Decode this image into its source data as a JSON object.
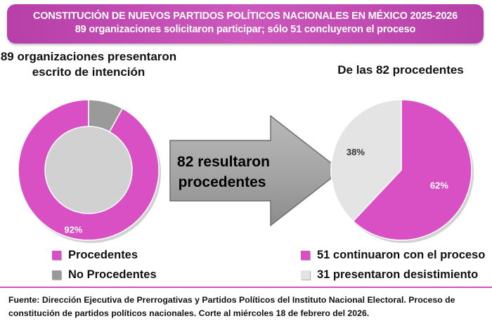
{
  "header": {
    "title": "CONSTITUCIÓN DE NUEVOS PARTIDOS POLÍTICOS NACIONALES EN MÉXICO 2025-2026",
    "subtitle": "89 organizaciones solicitaron participar; sólo 51 concluyeron el proceso"
  },
  "arrow_text": {
    "line1": "82 resultaron",
    "line2": "procedentes"
  },
  "source_note": "Fuente: Dirección Ejecutiva de Prerrogativas y Partidos Políticos del Instituto Nacional Electoral. Proceso de constitución de partidos políticos nacionales. Corte al miércoles 18 de febrero del 2026.",
  "colors": {
    "magenta": "#d94fc4",
    "gray": "#9a9a9a",
    "light_gray": "#e4e4e4",
    "banner": "#c24fb3"
  },
  "chart_data": [
    {
      "type": "pie",
      "subtype": "donut",
      "title_line1": "89 organizaciones presentaron",
      "title_line2": "escrito de intención",
      "slices": [
        {
          "label": "Procedentes",
          "value": 92,
          "value_label": "92%",
          "color": "#d94fc4"
        },
        {
          "label": "No Procedentes",
          "value": 8,
          "value_label": "",
          "color": "#9a9a9a"
        }
      ]
    },
    {
      "type": "pie",
      "title": "De las 82 procedentes",
      "slices": [
        {
          "label": "51 continuaron con el proceso",
          "value": 62,
          "value_label": "62%",
          "color": "#d94fc4"
        },
        {
          "label": "31 presentaron desistimiento",
          "value": 38,
          "value_label": "38%",
          "color": "#e4e4e4"
        }
      ]
    }
  ]
}
